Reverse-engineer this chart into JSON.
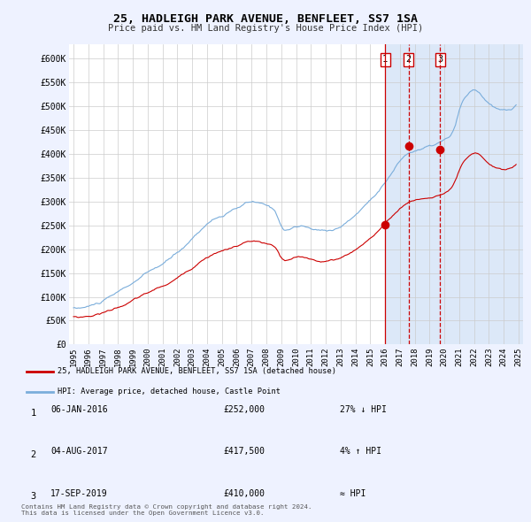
{
  "title": "25, HADLEIGH PARK AVENUE, BENFLEET, SS7 1SA",
  "subtitle": "Price paid vs. HM Land Registry's House Price Index (HPI)",
  "background_color": "#eef2ff",
  "plot_bg_color": "#ffffff",
  "shade_bg_color": "#dce8f8",
  "red_line_color": "#cc0000",
  "blue_line_color": "#7aaddb",
  "vline_color": "#cc0000",
  "ylim": [
    0,
    630000
  ],
  "yticks": [
    0,
    50000,
    100000,
    150000,
    200000,
    250000,
    300000,
    350000,
    400000,
    450000,
    500000,
    550000,
    600000
  ],
  "ytick_labels": [
    "£0",
    "£50K",
    "£100K",
    "£150K",
    "£200K",
    "£250K",
    "£300K",
    "£350K",
    "£400K",
    "£450K",
    "£500K",
    "£550K",
    "£600K"
  ],
  "xlim": [
    1994.7,
    2025.3
  ],
  "xticks": [
    1995,
    1996,
    1997,
    1998,
    1999,
    2000,
    2001,
    2002,
    2003,
    2004,
    2005,
    2006,
    2007,
    2008,
    2009,
    2010,
    2011,
    2012,
    2013,
    2014,
    2015,
    2016,
    2017,
    2018,
    2019,
    2020,
    2021,
    2022,
    2023,
    2024,
    2025
  ],
  "transactions": [
    {
      "id": 1,
      "date": "06-JAN-2016",
      "price": 252000,
      "relation": "27% ↓ HPI",
      "x": 2016.01,
      "linestyle": "solid"
    },
    {
      "id": 2,
      "date": "04-AUG-2017",
      "price": 417500,
      "relation": "4% ↑ HPI",
      "x": 2017.58,
      "linestyle": "dashed"
    },
    {
      "id": 3,
      "date": "17-SEP-2019",
      "price": 410000,
      "relation": "≈ HPI",
      "x": 2019.71,
      "linestyle": "dashed"
    }
  ],
  "legend_label_red": "25, HADLEIGH PARK AVENUE, BENFLEET, SS7 1SA (detached house)",
  "legend_label_blue": "HPI: Average price, detached house, Castle Point",
  "footer": "Contains HM Land Registry data © Crown copyright and database right 2024.\nThis data is licensed under the Open Government Licence v3.0.",
  "shade_x_start": 2016.01
}
